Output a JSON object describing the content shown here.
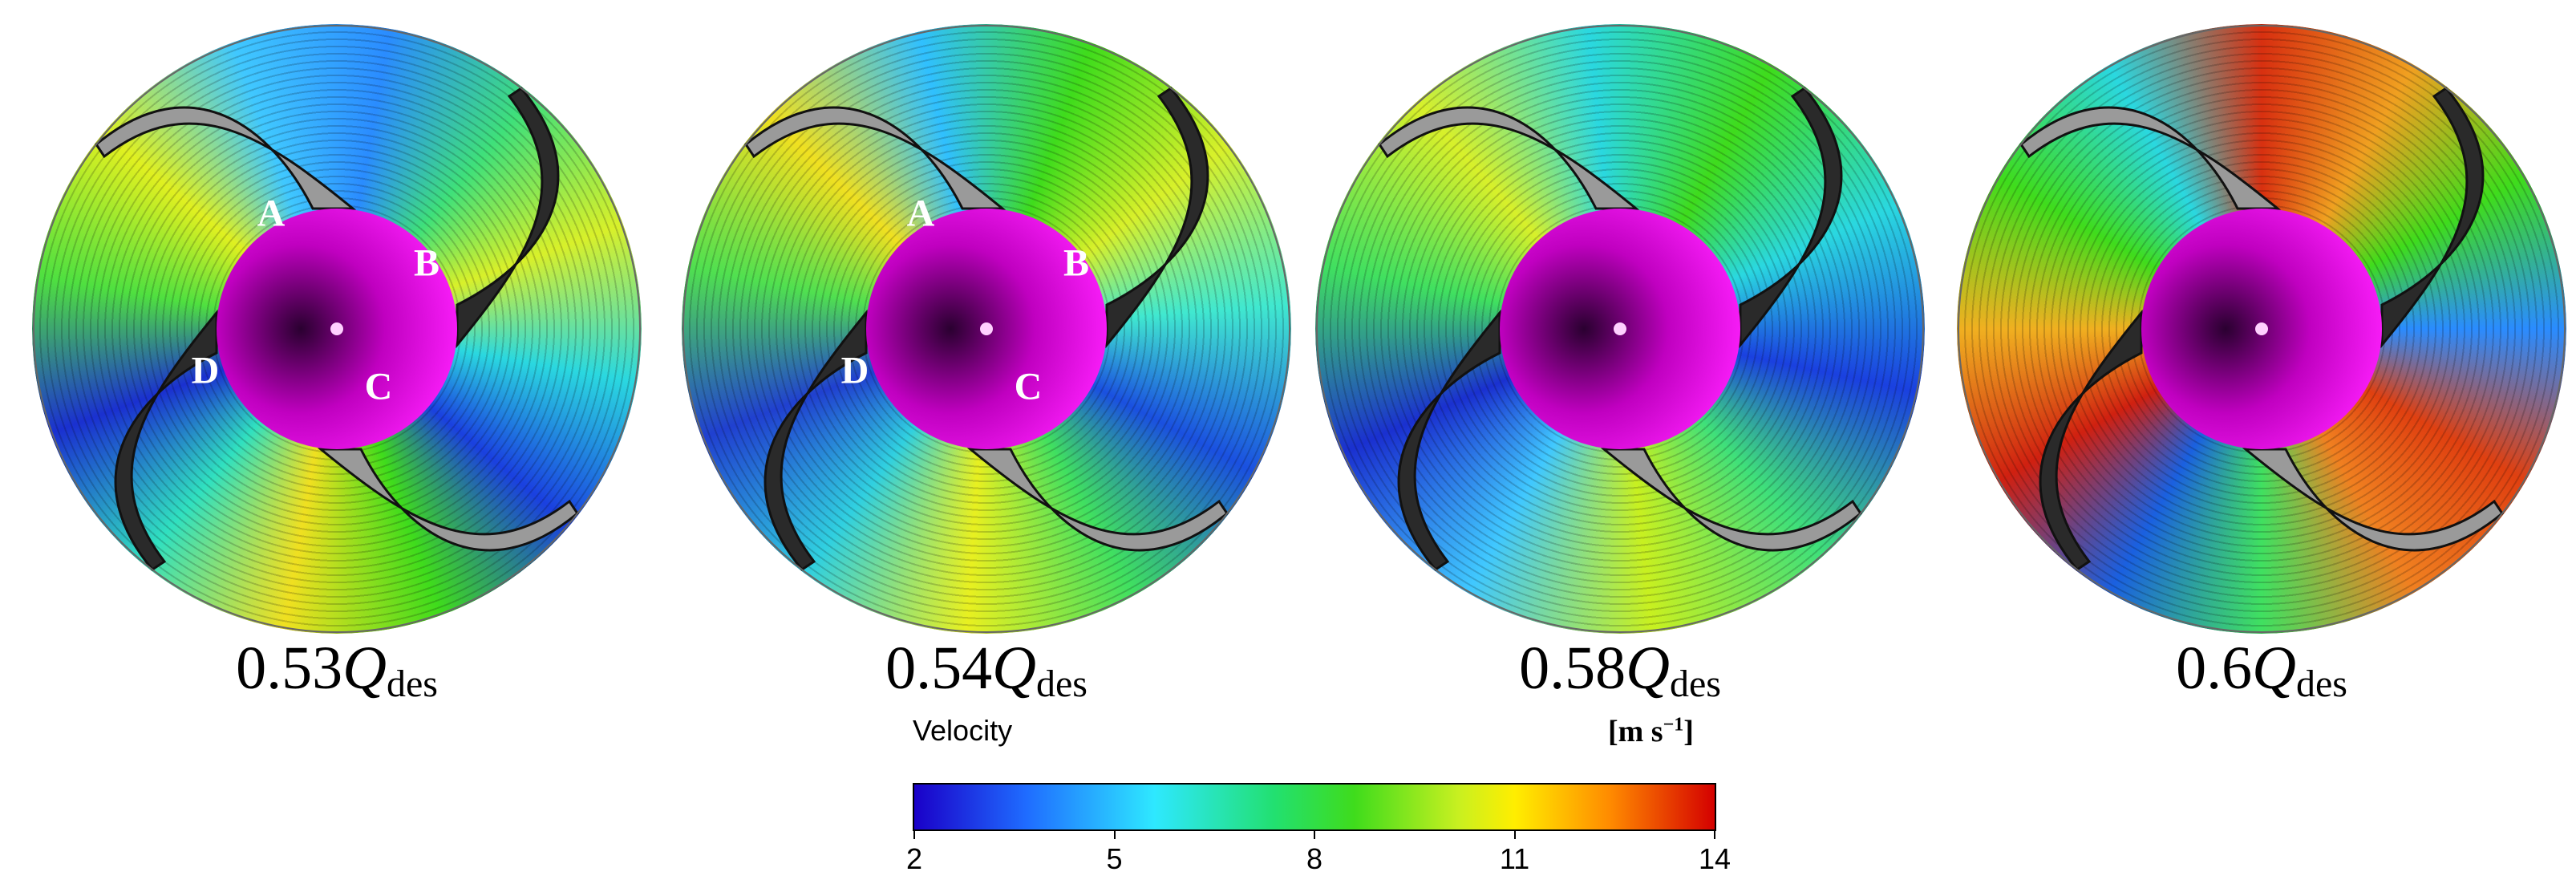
{
  "panels": [
    {
      "flow": "0.53",
      "symbol": "Q",
      "subscript": "des",
      "blade_labels": [
        "A",
        "B",
        "C",
        "D"
      ]
    },
    {
      "flow": "0.54",
      "symbol": "Q",
      "subscript": "des",
      "blade_labels": [
        "A",
        "B",
        "C",
        "D"
      ]
    },
    {
      "flow": "0.58",
      "symbol": "Q",
      "subscript": "des",
      "blade_labels": []
    },
    {
      "flow": "0.6",
      "symbol": "Q",
      "subscript": "des",
      "blade_labels": []
    }
  ],
  "colorbar": {
    "title": "Velocity",
    "unit": "[m s",
    "unit_exponent": "−1",
    "unit_close": "]",
    "ticks": [
      2,
      5,
      8,
      11,
      14
    ]
  }
}
